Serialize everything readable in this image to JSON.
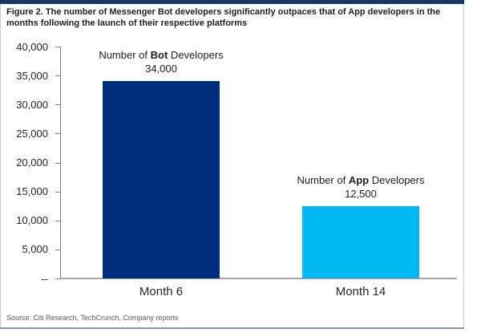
{
  "figure": {
    "title": "Figure 2. The number of Messenger Bot developers significantly outpaces that of App developers in the months following the launch of their respective platforms",
    "source": "Source: Citi Research, TechCrunch, Company reports"
  },
  "chart_data": {
    "type": "bar",
    "title": "Figure 2. The number of Messenger Bot developers significantly outpaces that of App developers in the months following the launch of their respective platforms",
    "categories": [
      "Month 6",
      "Month 14"
    ],
    "values": [
      34000,
      12500
    ],
    "value_labels": [
      "34,000",
      "12,500"
    ],
    "bar_labels": [
      {
        "prefix": "Number of ",
        "bold": "Bot",
        "suffix": " Developers"
      },
      {
        "prefix": "Number of ",
        "bold": "App",
        "suffix": " Developers"
      }
    ],
    "bar_colors": [
      "#002E7D",
      "#00B8F0"
    ],
    "ylim": [
      0,
      40000
    ],
    "ytick_interval": 5000,
    "ytick_labels": [
      "40,000",
      "35,000",
      "30,000",
      "25,000",
      "20,000",
      "15,000",
      "10,000",
      "5,000",
      "--"
    ],
    "xlabel": "",
    "ylabel": "",
    "grid": false,
    "legend_position": "none",
    "source": "Source: Citi Research, TechCrunch, Company reports"
  },
  "style_colors": {
    "top_band": "#17365D",
    "bottom_rule": "#8892C0",
    "panel_border": "#CCCCCC",
    "axis_line": "#808080",
    "baseline": "#A6A6A6"
  }
}
